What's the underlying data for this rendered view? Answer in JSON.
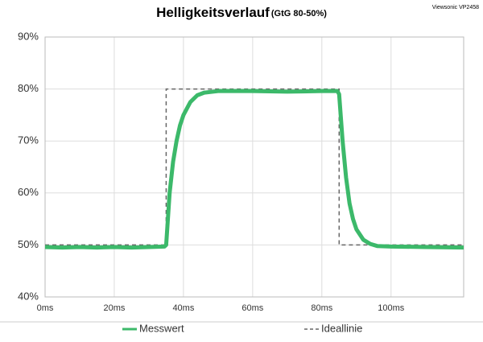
{
  "chart_data": {
    "type": "line",
    "title": "Helligkeitsverlauf",
    "subtitle": "(GtG 80-50%)",
    "annotation": "Viewsonic VP2458",
    "xlim": [
      0,
      121
    ],
    "ylim": [
      40,
      90
    ],
    "xticks": [
      {
        "value": 0,
        "label": "0ms"
      },
      {
        "value": 20,
        "label": "20ms"
      },
      {
        "value": 40,
        "label": "40ms"
      },
      {
        "value": 60,
        "label": "60ms"
      },
      {
        "value": 80,
        "label": "80ms"
      },
      {
        "value": 100,
        "label": "100ms"
      }
    ],
    "yticks": [
      {
        "value": 40,
        "label": "40%"
      },
      {
        "value": 50,
        "label": "50%"
      },
      {
        "value": 60,
        "label": "60%"
      },
      {
        "value": 70,
        "label": "70%"
      },
      {
        "value": 80,
        "label": "80%"
      },
      {
        "value": 90,
        "label": "90%"
      }
    ],
    "grid": true,
    "legend": "bottom",
    "series": [
      {
        "name": "Messwert",
        "color": "#3cb96a",
        "x": [
          0,
          5,
          10,
          15,
          20,
          25,
          30,
          34.5,
          35,
          36,
          37,
          38,
          39,
          40,
          42,
          44,
          46,
          50,
          60,
          70,
          80,
          84.5,
          85,
          86,
          87,
          88,
          89,
          90,
          92,
          94,
          96,
          100,
          110,
          121
        ],
        "values": [
          49.6,
          49.5,
          49.6,
          49.5,
          49.6,
          49.5,
          49.6,
          49.7,
          50,
          60,
          66,
          70,
          73,
          75,
          77.5,
          78.8,
          79.3,
          79.6,
          79.6,
          79.5,
          79.6,
          79.6,
          79,
          70,
          63,
          58,
          55,
          53,
          51,
          50.2,
          49.8,
          49.7,
          49.6,
          49.5
        ]
      },
      {
        "name": "Ideallinie",
        "color": "#666666",
        "dashed": true,
        "x": [
          0,
          35,
          35,
          85,
          85,
          121
        ],
        "values": [
          50,
          50,
          80,
          80,
          50,
          50
        ]
      }
    ]
  }
}
